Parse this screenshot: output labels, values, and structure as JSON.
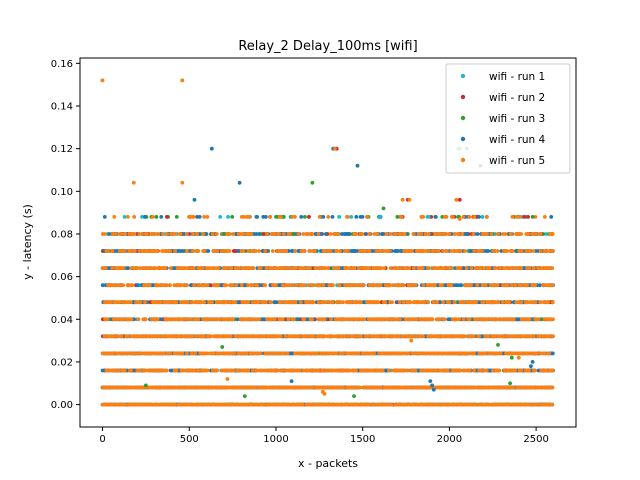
{
  "chart_data": {
    "type": "scatter",
    "title": "Relay_2 Delay_100ms [wifi]",
    "xlabel": "x - packets",
    "ylabel": "y - latency (s)",
    "xlim": [
      -130,
      2730
    ],
    "ylim": [
      -0.0105,
      0.1625
    ],
    "xticks": [
      0,
      500,
      1000,
      1500,
      2000,
      2500
    ],
    "xtick_labels": [
      "0",
      "500",
      "1000",
      "1500",
      "2000",
      "2500"
    ],
    "yticks": [
      0.0,
      0.02,
      0.04,
      0.06,
      0.08,
      0.1,
      0.12,
      0.14,
      0.16
    ],
    "ytick_labels": [
      "0.00",
      "0.02",
      "0.04",
      "0.06",
      "0.08",
      "0.10",
      "0.12",
      "0.14",
      "0.16"
    ],
    "grid": false,
    "legend_position": "top-right",
    "levels": [
      0.0,
      0.008,
      0.016,
      0.024,
      0.032,
      0.04,
      0.048,
      0.056,
      0.064,
      0.072,
      0.08,
      0.088
    ],
    "series": [
      {
        "name": "wifi - run 1",
        "color": "#17becf",
        "points": [
          [
            0,
            0.152
          ],
          [
            460,
            0.152
          ],
          [
            1340,
            0.12
          ],
          [
            2050,
            0.12
          ],
          [
            1600,
            0.088
          ],
          [
            1880,
            0.088
          ]
        ]
      },
      {
        "name": "wifi - run 2",
        "color": "#d62728",
        "points": [
          [
            1350,
            0.12
          ],
          [
            2060,
            0.096
          ],
          [
            1760,
            0.096
          ],
          [
            2180,
            0.112
          ]
        ]
      },
      {
        "name": "wifi - run 3",
        "color": "#2ca02c",
        "points": [
          [
            2060,
            0.12
          ],
          [
            2100,
            0.12
          ],
          [
            1210,
            0.104
          ],
          [
            1620,
            0.092
          ],
          [
            690,
            0.027
          ],
          [
            2280,
            0.028
          ],
          [
            2360,
            0.022
          ],
          [
            2350,
            0.01
          ],
          [
            250,
            0.009
          ],
          [
            820,
            0.004
          ],
          [
            1450,
            0.004
          ],
          [
            1700,
            0.088
          ],
          [
            2050,
            0.088
          ],
          [
            2480,
            0.088
          ],
          [
            1000,
            0.088
          ],
          [
            700,
            0.08
          ],
          [
            1100,
            0.08
          ]
        ]
      },
      {
        "name": "wifi - run 4",
        "color": "#1f77b4",
        "points": [
          [
            630,
            0.12
          ],
          [
            1470,
            0.112
          ],
          [
            530,
            0.096
          ],
          [
            790,
            0.104
          ],
          [
            1330,
            0.12
          ],
          [
            1090,
            0.011
          ],
          [
            1890,
            0.011
          ],
          [
            1900,
            0.009
          ],
          [
            2480,
            0.02
          ],
          [
            2470,
            0.018
          ],
          [
            1910,
            0.007
          ]
        ]
      },
      {
        "name": "wifi - run 5",
        "color": "#ff7f0e",
        "points": [
          [
            0,
            0.152
          ],
          [
            460,
            0.152
          ],
          [
            180,
            0.104
          ],
          [
            460,
            0.104
          ],
          [
            1340,
            0.12
          ],
          [
            2040,
            0.096
          ],
          [
            1730,
            0.096
          ],
          [
            1770,
            0.096
          ],
          [
            2060,
            0.087
          ],
          [
            1780,
            0.03
          ],
          [
            720,
            0.012
          ],
          [
            1270,
            0.006
          ],
          [
            1280,
            0.005
          ],
          [
            2400,
            0.022
          ],
          [
            2440,
            0.016
          ]
        ]
      }
    ]
  }
}
